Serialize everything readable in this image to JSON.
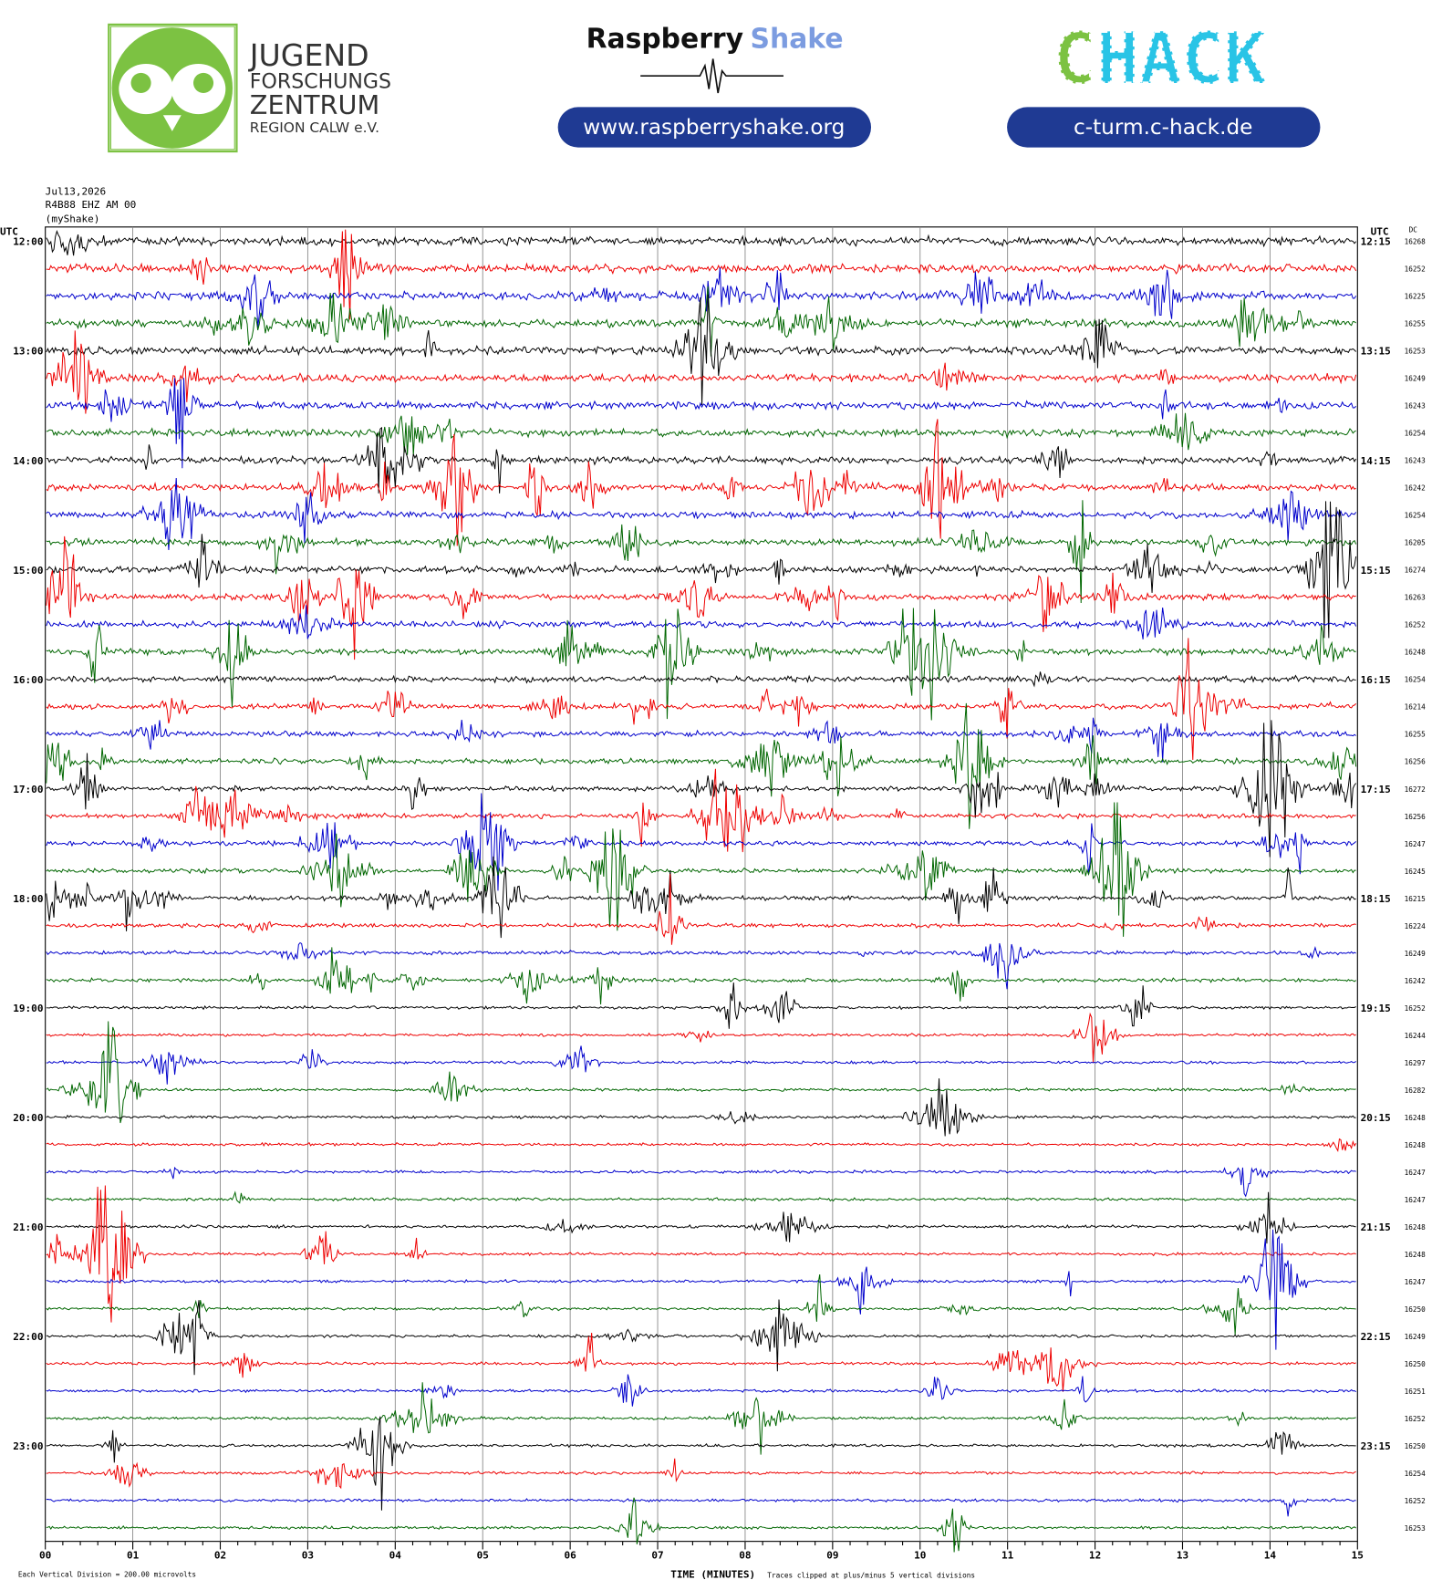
{
  "header": {
    "org_logo": {
      "line1": "JUGEND",
      "line2": "FORSCHUNGS",
      "line3": "ZENTRUM",
      "line4": "REGION CALW e.V."
    },
    "shake_logo": {
      "part1": "Raspberry",
      "part2": "Shake"
    },
    "shake_url": "www.raspberryshake.org",
    "chack_logo": {
      "part1": "C",
      "part2": "HACK"
    },
    "chack_url": "c-turm.c-hack.de"
  },
  "plot": {
    "date": "Jul13,2026",
    "station": "R4B88 EHZ AM 00",
    "owner": "(myShake)",
    "left_unit": "UTC",
    "right_unit": "UTC",
    "dc_header": "DC",
    "left_labels": [
      "12:00",
      "13:00",
      "14:00",
      "15:00",
      "16:00",
      "17:00",
      "18:00",
      "19:00",
      "20:00",
      "21:00",
      "22:00",
      "23:00"
    ],
    "right_labels": [
      "12:15",
      "13:15",
      "14:15",
      "15:15",
      "16:15",
      "17:15",
      "18:15",
      "19:15",
      "20:15",
      "21:15",
      "22:15",
      "23:15"
    ],
    "dc_values": [
      "16268",
      "16252",
      "16225",
      "16255",
      "16253",
      "16249",
      "16243",
      "16254",
      "16243",
      "16242",
      "16254",
      "16205",
      "16274",
      "16263",
      "16252",
      "16248",
      "16254",
      "16214",
      "16255",
      "16256",
      "16272",
      "16256",
      "16247",
      "16245",
      "16215",
      "16224",
      "16249",
      "16242",
      "16252",
      "16244",
      "16297",
      "16282",
      "16248",
      "16248",
      "16247",
      "16247",
      "16248",
      "16248",
      "16247",
      "16250",
      "16249",
      "16250",
      "16251",
      "16252",
      "16250",
      "16254",
      "16252",
      "16253"
    ],
    "x_labels": [
      "00",
      "01",
      "02",
      "03",
      "04",
      "05",
      "06",
      "07",
      "08",
      "09",
      "10",
      "11",
      "12",
      "13",
      "14",
      "15"
    ],
    "x_title": "TIME (MINUTES)",
    "scale_note": "Each Vertical Division =  200.00 microvolts",
    "clip_note": "Traces clipped at plus/minus 5 vertical divisions"
  }
}
